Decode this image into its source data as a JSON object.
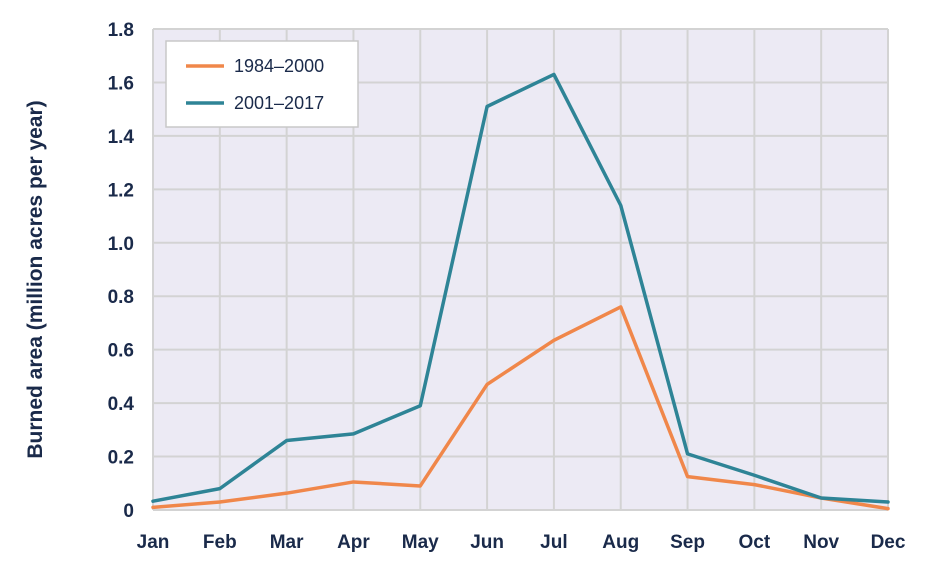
{
  "chart_data": {
    "type": "line",
    "title": "",
    "xlabel": "",
    "ylabel": "Burned area (million acres per year)",
    "categories": [
      "Jan",
      "Feb",
      "Mar",
      "Apr",
      "May",
      "Jun",
      "Jul",
      "Aug",
      "Sep",
      "Oct",
      "Nov",
      "Dec"
    ],
    "ylim": [
      0,
      1.8
    ],
    "yticks": [
      "0",
      "0.2",
      "0.4",
      "0.6",
      "0.8",
      "1.0",
      "1.2",
      "1.4",
      "1.6",
      "1.8"
    ],
    "ytick_values": [
      0,
      0.2,
      0.4,
      0.6,
      0.8,
      1.0,
      1.2,
      1.4,
      1.6,
      1.8
    ],
    "grid": true,
    "legend_position": "top-left",
    "series": [
      {
        "name": "1984–2000",
        "color": "#f0874a",
        "values": [
          0.01,
          0.03,
          0.063,
          0.105,
          0.09,
          0.47,
          0.635,
          0.76,
          0.125,
          0.095,
          0.045,
          0.005
        ]
      },
      {
        "name": "2001–2017",
        "color": "#2e8496",
        "values": [
          0.033,
          0.08,
          0.26,
          0.285,
          0.39,
          1.51,
          1.63,
          1.14,
          0.21,
          0.13,
          0.045,
          0.03
        ]
      }
    ],
    "colors": {
      "plot_background": "#eceaf4",
      "grid": "#d3d3d3",
      "text": "#1a2a4a"
    }
  }
}
